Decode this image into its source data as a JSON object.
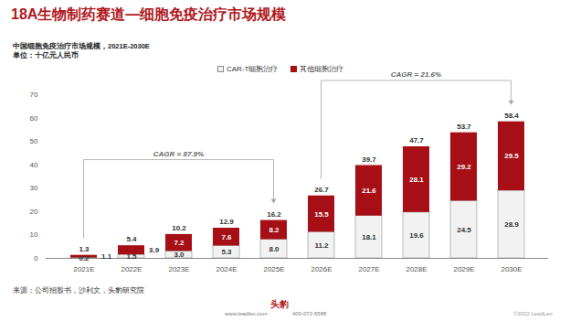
{
  "chart_data": {
    "type": "bar",
    "stacked": true,
    "title": "18A生物制药赛道—细胞免疫治疗市场规模",
    "subtitle": "中国细胞免疫治疗市场规模，2021E-2030E",
    "unit": "单位：十亿元人民币",
    "source": "来源：公司招股书，沙利文，头豹研究院",
    "footer": {
      "logo": "头豹",
      "website": "www.leadleo.com",
      "phone": "400-072-5588",
      "copyright": "©2022 LeadLeo"
    },
    "categories": [
      "2021E",
      "2022E",
      "2023E",
      "2024E",
      "2025E",
      "2026E",
      "2027E",
      "2028E",
      "2029E",
      "2030E"
    ],
    "series": [
      {
        "name": "CAR-T细胞治疗",
        "color": "#f2f2f2",
        "values": [
          0.2,
          1.5,
          3.0,
          5.3,
          8.0,
          11.2,
          18.1,
          19.6,
          24.5,
          28.9
        ],
        "value_labels": [
          "0.2",
          "1.5",
          "3.0",
          "5.3",
          "8.0",
          "11.2",
          "18.1",
          "19.6",
          "24.5",
          "28.9"
        ]
      },
      {
        "name": "其他细胞治疗",
        "color": "#a50f15",
        "values": [
          1.1,
          3.9,
          7.2,
          7.6,
          8.2,
          15.5,
          21.6,
          28.1,
          29.2,
          29.5
        ]
      }
    ],
    "totals": [
      1.3,
      5.4,
      10.2,
      12.9,
      16.2,
      26.7,
      39.7,
      47.7,
      53.7,
      58.4
    ],
    "annotations": [
      {
        "text": "CAGR = 87.9%",
        "from": "2021E",
        "to": "2025E"
      },
      {
        "text": "CAGR = 21.6%",
        "from": "2026E",
        "to": "2030E"
      }
    ],
    "ylim": [
      0,
      70
    ],
    "yticks": [
      0,
      10,
      20,
      30,
      40,
      50,
      60,
      70
    ],
    "grid": false,
    "legend": "top",
    "data_labels": true
  }
}
